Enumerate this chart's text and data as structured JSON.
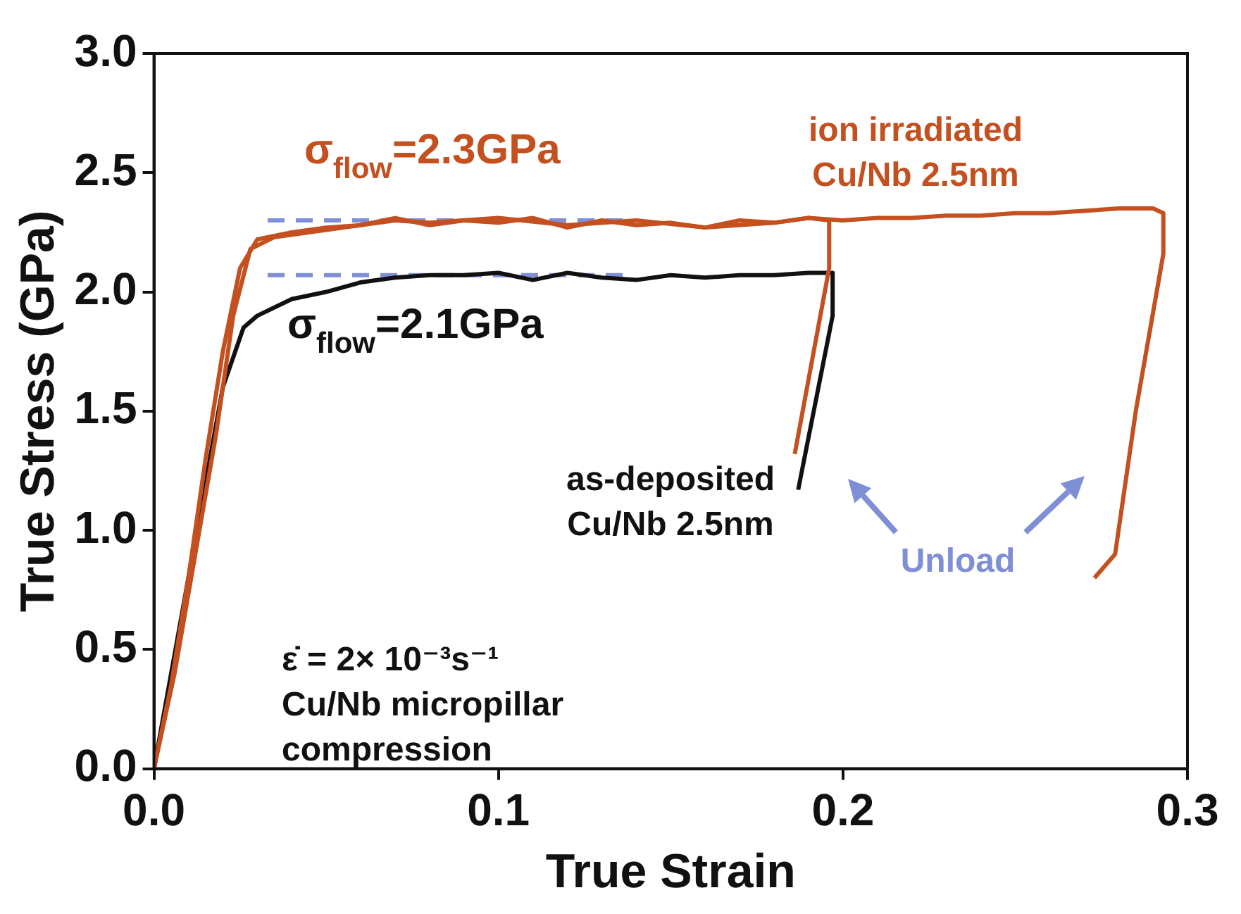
{
  "chart_data": {
    "type": "line",
    "xlabel": "True Strain",
    "ylabel": "True Stress (GPa)",
    "xlim": [
      0,
      0.3
    ],
    "xticks": [
      {
        "value": 0,
        "label": "0.0"
      },
      0.1,
      0.2,
      0.3
    ],
    "ylim": [
      0,
      3
    ],
    "yticks": [
      {
        "value": 0,
        "label": "0.0"
      },
      0.5,
      {
        "value": 1,
        "label": "1.0"
      },
      1.5,
      {
        "value": 2,
        "label": "2.0"
      },
      2.5,
      {
        "value": 3,
        "label": "3.0"
      }
    ],
    "grid": false,
    "legend": false,
    "marker": "none",
    "annotations": [
      "σ$_{flow}$=2.3GPa",
      "σ$_{flow}$=2.1GPa",
      "Unload",
      "ε̇ = 2× 10⁻³s⁻¹",
      "Cu/Nb micropillar",
      "compression"
    ],
    "series": [
      {
        "name": "ion irradiated Cu/Nb 2.5nm",
        "color": "#c4501f",
        "x": [
          0,
          0.005,
          0.01,
          0.015,
          0.02,
          0.025,
          0.03,
          0.04,
          0.05,
          0.06,
          0.07,
          0.08,
          0.09,
          0.1,
          0.11,
          0.12,
          0.13,
          0.14,
          0.15,
          0.16,
          0.17,
          0.18,
          0.19,
          0.2,
          0.21,
          0.22,
          0.23,
          0.24,
          0.25,
          0.26,
          0.27,
          0.28,
          0.29,
          0.293,
          0.293,
          0.285,
          0.279,
          0.273
        ],
        "values": [
          0,
          0.35,
          0.8,
          1.3,
          1.75,
          2.1,
          2.22,
          2.25,
          2.27,
          2.28,
          2.31,
          2.28,
          2.3,
          2.29,
          2.31,
          2.27,
          2.3,
          2.28,
          2.29,
          2.27,
          2.3,
          2.29,
          2.31,
          2.3,
          2.31,
          2.31,
          2.32,
          2.32,
          2.33,
          2.33,
          2.34,
          2.35,
          2.35,
          2.33,
          2.16,
          1.5,
          0.9,
          0.8
        ]
      },
      {
        "color": "#c4501f",
        "x": [
          0,
          0.006,
          0.012,
          0.018,
          0.023,
          0.028,
          0.035,
          0.05,
          0.07,
          0.08,
          0.1,
          0.12,
          0.14,
          0.16,
          0.18,
          0.19,
          0.196,
          0.196,
          0.186
        ],
        "values": [
          0,
          0.4,
          0.9,
          1.4,
          1.9,
          2.18,
          2.23,
          2.26,
          2.3,
          2.29,
          2.31,
          2.28,
          2.3,
          2.27,
          2.29,
          2.31,
          2.3,
          2.1,
          1.32
        ]
      },
      {
        "name": "as-deposited Cu/Nb 2.5nm",
        "color": "#111111",
        "x": [
          0,
          0.005,
          0.01,
          0.015,
          0.02,
          0.026,
          0.03,
          0.04,
          0.05,
          0.06,
          0.07,
          0.08,
          0.09,
          0.1,
          0.11,
          0.12,
          0.13,
          0.14,
          0.15,
          0.16,
          0.17,
          0.18,
          0.19,
          0.197,
          0.197,
          0.187
        ],
        "values": [
          0,
          null,
          null,
          1.2,
          1.6,
          1.85,
          1.9,
          1.97,
          2.0,
          2.04,
          2.06,
          2.07,
          2.07,
          2.08,
          2.05,
          2.08,
          2.06,
          2.05,
          2.07,
          2.06,
          2.07,
          2.07,
          2.08,
          2.08,
          1.9,
          1.17
        ]
      },
      {
        "color": "#7f8fd6",
        "line_style": "dashed",
        "x": [
          0.033,
          0.137
        ],
        "values": [
          2.3,
          2.3
        ]
      },
      {
        "color": "#7f8fd6",
        "line_style": "dashed",
        "x": [
          0.033,
          0.137
        ],
        "values": [
          2.07,
          2.07
        ]
      }
    ]
  }
}
